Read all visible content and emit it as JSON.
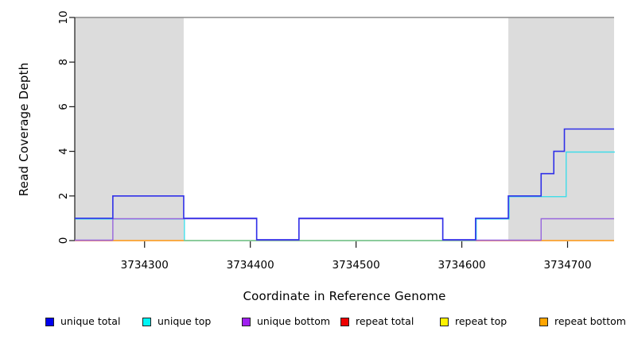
{
  "chart_data": {
    "type": "line",
    "subtype": "step-coverage-plot",
    "title": "",
    "xlabel": "Coordinate in Reference Genome",
    "ylabel": "Read Coverage Depth",
    "xlim": [
      3734234,
      3734744
    ],
    "ylim": [
      0,
      10
    ],
    "x_ticks": [
      3734300,
      3734400,
      3734500,
      3734600,
      3734700
    ],
    "y_ticks": [
      0,
      2,
      4,
      6,
      8,
      10
    ],
    "grid": false,
    "legend_position": "bottom",
    "shaded_region_color": "#dcdcdc",
    "shaded_regions": [
      {
        "x1": 3734234,
        "x2": 3734337
      },
      {
        "x1": 3734644,
        "x2": 3734744
      }
    ],
    "series": [
      {
        "name": "unique total",
        "line_color": "#3030e8",
        "legend_color": "#0000ee",
        "steps": [
          [
            3734234,
            1
          ],
          [
            3734270,
            2
          ],
          [
            3734337,
            1
          ],
          [
            3734406,
            0
          ],
          [
            3734446,
            1
          ],
          [
            3734582,
            0
          ],
          [
            3734613,
            1
          ],
          [
            3734644,
            2
          ],
          [
            3734675,
            3
          ],
          [
            3734687,
            4
          ],
          [
            3734697,
            5
          ],
          [
            3734744,
            5
          ]
        ]
      },
      {
        "name": "unique top",
        "line_color": "#3fdde8",
        "legend_color": "#00f5f5",
        "steps": [
          [
            3734234,
            1
          ],
          [
            3734337,
            0
          ],
          [
            3734613,
            1
          ],
          [
            3734644,
            2
          ],
          [
            3734698,
            4
          ],
          [
            3734744,
            4
          ]
        ]
      },
      {
        "name": "unique bottom",
        "line_color": "#9766dd",
        "legend_color": "#a020f0",
        "steps": [
          [
            3734234,
            0
          ],
          [
            3734270,
            1
          ],
          [
            3734406,
            0
          ],
          [
            3734446,
            1
          ],
          [
            3734582,
            0
          ],
          [
            3734675,
            1
          ],
          [
            3734744,
            1
          ]
        ]
      },
      {
        "name": "repeat total",
        "line_color": "#e0687f",
        "legend_color": "#ee0000",
        "steps": [
          [
            3734234,
            0
          ],
          [
            3734744,
            0
          ]
        ]
      },
      {
        "name": "repeat top",
        "line_color": "#f5f046",
        "legend_color": "#fff200",
        "steps": [
          [
            3734234,
            0
          ],
          [
            3734744,
            0
          ]
        ]
      },
      {
        "name": "repeat bottom",
        "line_color": "#ff9f1f",
        "legend_color": "#ffa500",
        "steps": [
          [
            3734234,
            0
          ],
          [
            3734744,
            0
          ]
        ]
      }
    ],
    "zero_line_visible_segments": [
      {
        "x1": 3734234,
        "x2": 3734270,
        "color": "#e0687f"
      },
      {
        "x1": 3734270,
        "x2": 3734337,
        "color": "#ff9f1f"
      },
      {
        "x1": 3734337,
        "x2": 3734613,
        "color": "#84c887"
      },
      {
        "x1": 3734613,
        "x2": 3734675,
        "color": "#e0687f"
      },
      {
        "x1": 3734675,
        "x2": 3734744,
        "color": "#ff9f1f"
      }
    ]
  }
}
